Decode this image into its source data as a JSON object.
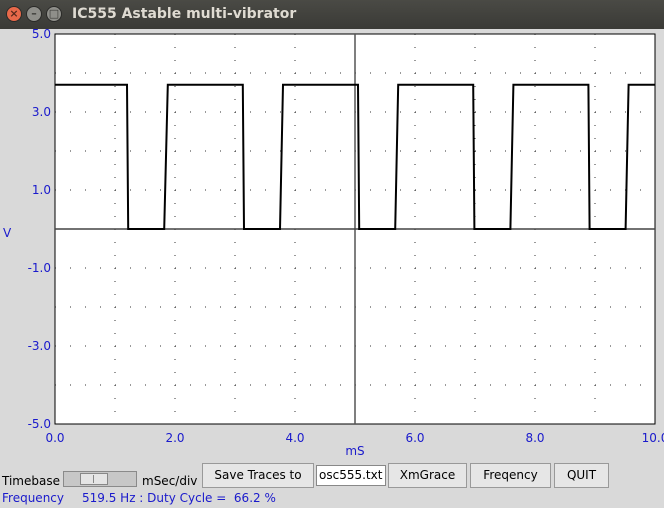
{
  "window": {
    "title": "IC555 Astable multi-vibrator",
    "close_glyph": "×",
    "minimize_glyph": "–",
    "maximize_glyph": "□"
  },
  "chart_data": {
    "type": "line",
    "xlabel": "mS",
    "ylabel": "V",
    "xlim": [
      0,
      10
    ],
    "ylim": [
      -5,
      5
    ],
    "x_ticks": [
      "0.0",
      "2.0",
      "4.0",
      "6.0",
      "8.0",
      "10.0"
    ],
    "y_ticks": [
      "5.0",
      "3.0",
      "1.0",
      "-1.0",
      "-3.0",
      "-5.0"
    ],
    "grid": true,
    "line_color": "#000000",
    "axis_label_color": "#1a1acc",
    "series": [
      {
        "x": [
          0,
          1.2,
          1.22,
          1.82,
          1.88,
          3.13,
          3.15,
          3.75,
          3.8,
          5.05,
          5.07,
          5.67,
          5.72,
          6.97,
          6.99,
          7.59,
          7.64,
          8.89,
          8.91,
          9.51,
          9.56,
          10
        ],
        "y": [
          3.7,
          3.7,
          0,
          0,
          3.7,
          3.7,
          0,
          0,
          3.7,
          3.7,
          0,
          0,
          3.7,
          3.7,
          0,
          0,
          3.7,
          3.7,
          0,
          0,
          3.7,
          3.7
        ]
      }
    ]
  },
  "controls": {
    "timebase_label": "Timebase",
    "timebase_unit": "mSec/div",
    "save_button": "Save Traces to",
    "filename": "osc555.txt",
    "xmgrace_button": "XmGrace",
    "frequency_button": "Freqency",
    "quit_button": "QUIT"
  },
  "status": {
    "frequency_label": "Frequency",
    "frequency_value": "519.5 Hz : Duty Cycle =  66.2 %"
  }
}
